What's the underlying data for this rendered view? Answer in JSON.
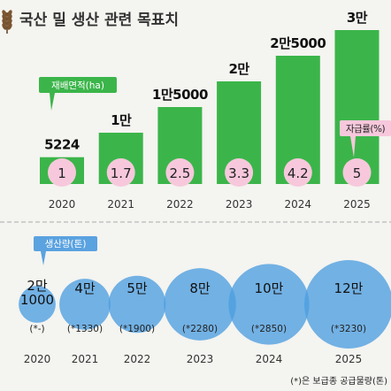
{
  "title": "국산 밀 생산 관련 목표치",
  "chart_data": [
    {
      "type": "bar",
      "series_label": "재배면적(ha)",
      "rate_label": "자급률(%)",
      "categories": [
        "2020",
        "2021",
        "2022",
        "2023",
        "2024",
        "2025"
      ],
      "values": [
        5224,
        10000,
        15000,
        20000,
        25000,
        30000
      ],
      "value_labels": [
        "5224",
        "1만",
        "1만5000",
        "2만",
        "2만5000",
        "3만"
      ],
      "self_sufficiency": [
        1,
        1.7,
        2.5,
        3.3,
        4.2,
        5
      ],
      "self_sufficiency_labels": [
        "1",
        "1.7",
        "2.5",
        "3.3",
        "4.2",
        "5"
      ],
      "colors": {
        "bar": "#3bb54a",
        "rate_circle": "#f7c8dc",
        "tag": "#3bb54a"
      }
    },
    {
      "type": "bubble",
      "series_label": "생산량(톤)",
      "categories": [
        "2020",
        "2021",
        "2022",
        "2023",
        "2024",
        "2025"
      ],
      "values": [
        21000,
        40000,
        50000,
        80000,
        100000,
        120000
      ],
      "value_labels": [
        "2만\n1000",
        "4만",
        "5만",
        "8만",
        "10만",
        "12만"
      ],
      "supply": [
        null,
        1330,
        1900,
        2280,
        2850,
        3230
      ],
      "supply_labels": [
        "(*-)",
        "(*1330)",
        "(*1900)",
        "(*2280)",
        "(*2850)",
        "(*3230)"
      ],
      "footnote": "(*)은 보급종 공급물량(톤)",
      "colors": {
        "bubble": "#4d9de0",
        "tag": "#5aa2e0"
      }
    }
  ]
}
